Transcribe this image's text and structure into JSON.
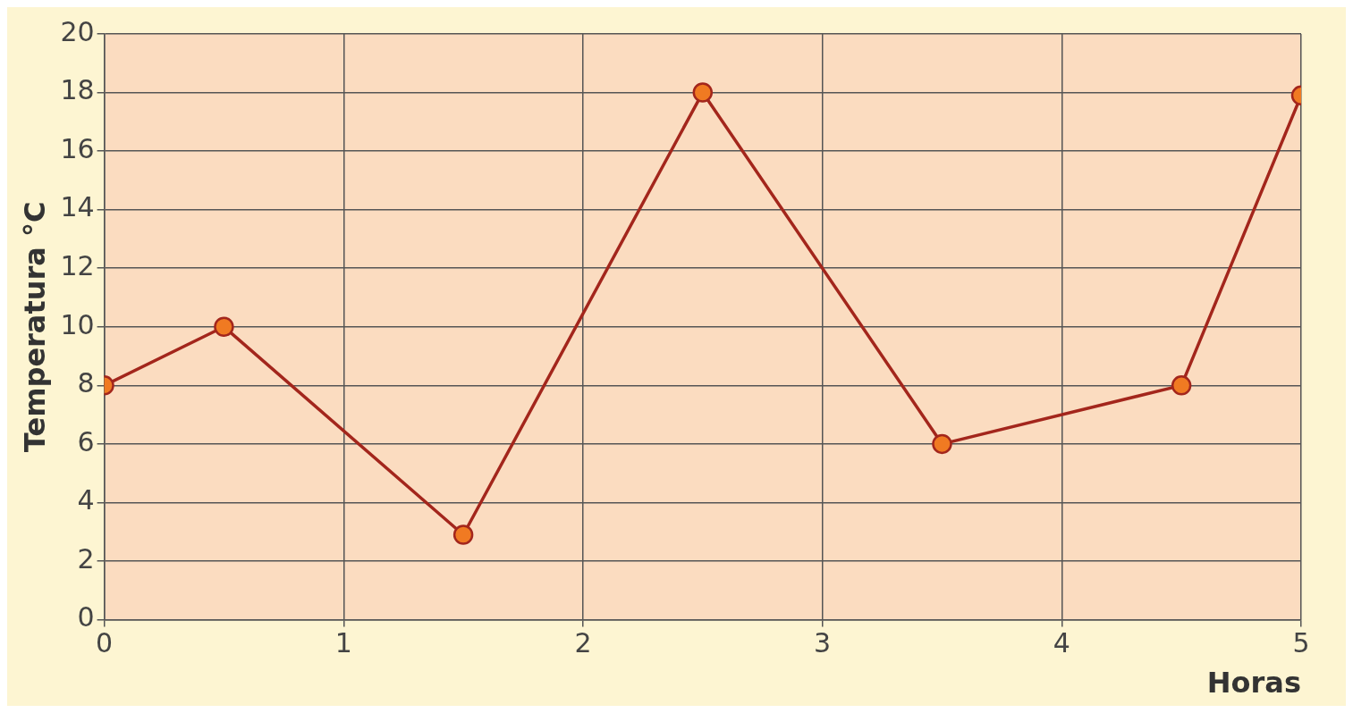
{
  "chart_data": {
    "type": "line",
    "xlabel": "Horas",
    "ylabel": "Temperatura °C",
    "x": [
      0,
      0.5,
      1.5,
      2.5,
      3.5,
      4.5,
      5
    ],
    "series": [
      {
        "color": "#a3261c",
        "values": [
          8,
          10,
          2.9,
          18,
          6,
          8,
          17.9
        ]
      }
    ],
    "xlim": [
      0,
      5
    ],
    "xticks": [
      0,
      1,
      2,
      3,
      4,
      5
    ],
    "ylim": [
      0,
      20
    ],
    "yticks": [
      0,
      2,
      4,
      6,
      8,
      10,
      12,
      14,
      16,
      18,
      20
    ],
    "grid": true,
    "marker": "circle",
    "line_style": "solid",
    "legend": false
  }
}
